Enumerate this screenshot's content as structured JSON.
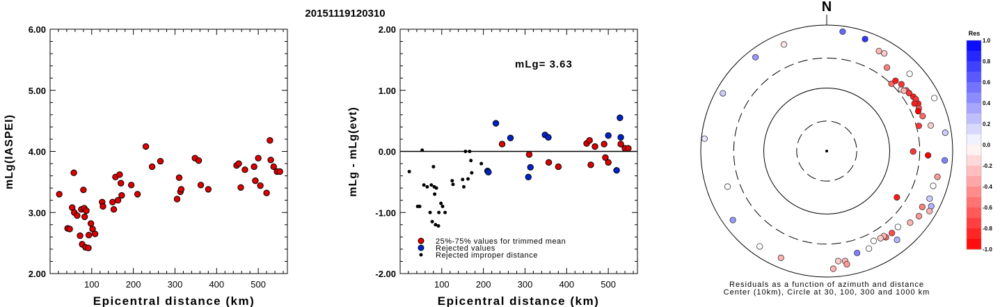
{
  "page_title": "20151119120310",
  "chart_data": [
    {
      "type": "scatter",
      "xlabel": "Epicentral distance (km)",
      "ylabel": "mLg(IASPEI)",
      "xlim": [
        0,
        570
      ],
      "ylim": [
        2.0,
        6.0
      ],
      "x_ticks": [
        "100",
        "200",
        "300",
        "400",
        "500"
      ],
      "y_ticks": [
        "2.00",
        "3.00",
        "4.00",
        "5.00",
        "6.00"
      ],
      "series": [
        {
          "points": [
            [
              22,
              3.3
            ],
            [
              42,
              2.74
            ],
            [
              47,
              2.73
            ],
            [
              53,
              3.08
            ],
            [
              57,
              3.65
            ],
            [
              58,
              3.0
            ],
            [
              65,
              2.95
            ],
            [
              72,
              2.62
            ],
            [
              75,
              3.05
            ],
            [
              77,
              2.48
            ],
            [
              80,
              3.37
            ],
            [
              82,
              3.07
            ],
            [
              83,
              2.93
            ],
            [
              85,
              2.43
            ],
            [
              87,
              3.03
            ],
            [
              92,
              2.42
            ],
            [
              93,
              2.63
            ],
            [
              98,
              2.82
            ],
            [
              102,
              2.73
            ],
            [
              108,
              2.65
            ],
            [
              125,
              3.17
            ],
            [
              127,
              3.1
            ],
            [
              150,
              3.17
            ],
            [
              153,
              3.05
            ],
            [
              157,
              3.58
            ],
            [
              163,
              3.2
            ],
            [
              167,
              3.62
            ],
            [
              170,
              3.48
            ],
            [
              172,
              3.28
            ],
            [
              195,
              3.45
            ],
            [
              210,
              3.3
            ],
            [
              230,
              4.08
            ],
            [
              245,
              3.75
            ],
            [
              265,
              3.84
            ],
            [
              305,
              3.22
            ],
            [
              310,
              3.57
            ],
            [
              313,
              3.34
            ],
            [
              315,
              3.38
            ],
            [
              348,
              3.89
            ],
            [
              357,
              3.85
            ],
            [
              362,
              3.45
            ],
            [
              380,
              3.38
            ],
            [
              448,
              3.77
            ],
            [
              453,
              3.8
            ],
            [
              458,
              3.41
            ],
            [
              468,
              3.7
            ],
            [
              490,
              3.75
            ],
            [
              493,
              3.52
            ],
            [
              500,
              3.89
            ],
            [
              505,
              3.44
            ],
            [
              520,
              3.32
            ],
            [
              528,
              4.18
            ],
            [
              530,
              3.86
            ],
            [
              537,
              3.75
            ],
            [
              545,
              3.67
            ],
            [
              552,
              3.67
            ]
          ]
        }
      ]
    },
    {
      "type": "scatter",
      "xlabel": "Epicentral distance (km)",
      "ylabel": "mLg - mLg(evt)",
      "annotation": "mLg= 3.63",
      "xlim": [
        0,
        570
      ],
      "ylim": [
        -2.0,
        2.0
      ],
      "x_ticks": [
        "100",
        "200",
        "300",
        "400",
        "500"
      ],
      "y_ticks": [
        "-2.00",
        "-1.00",
        "0.00",
        "1.00",
        "2.00"
      ],
      "legend": [
        {
          "label": "25%-75% values for trimmed mean",
          "color": "#dd0000"
        },
        {
          "label": "Rejected values",
          "color": "#0022cc"
        },
        {
          "label": "Rejected improper distance",
          "color": "#000000"
        }
      ],
      "series": [
        {
          "name": "25%-75% values for trimmed mean",
          "color": "#dd0000",
          "points": [
            [
              245,
              0.12
            ],
            [
              310,
              -0.05
            ],
            [
              357,
              -0.18
            ],
            [
              380,
              -0.25
            ],
            [
              448,
              0.13
            ],
            [
              455,
              0.18
            ],
            [
              458,
              -0.22
            ],
            [
              468,
              0.08
            ],
            [
              490,
              0.12
            ],
            [
              493,
              -0.1
            ],
            [
              500,
              -0.18
            ],
            [
              530,
              0.12
            ],
            [
              540,
              0.05
            ],
            [
              548,
              0.05
            ]
          ]
        },
        {
          "name": "Rejected values",
          "color": "#0022cc",
          "points": [
            [
              210,
              -0.32
            ],
            [
              212,
              -0.34
            ],
            [
              230,
              0.46
            ],
            [
              265,
              0.22
            ],
            [
              308,
              -0.42
            ],
            [
              313,
              -0.26
            ],
            [
              348,
              0.27
            ],
            [
              356,
              0.23
            ],
            [
              500,
              0.26
            ],
            [
              520,
              -0.31
            ],
            [
              528,
              0.55
            ],
            [
              530,
              0.23
            ]
          ]
        },
        {
          "name": "Rejected improper distance",
          "color": "#000000",
          "points": [
            [
              22,
              -0.33
            ],
            [
              42,
              -0.9
            ],
            [
              47,
              -0.9
            ],
            [
              53,
              0.02
            ],
            [
              57,
              -0.55
            ],
            [
              65,
              -0.58
            ],
            [
              72,
              -1.0
            ],
            [
              75,
              -0.55
            ],
            [
              77,
              -1.15
            ],
            [
              80,
              -0.25
            ],
            [
              82,
              -0.58
            ],
            [
              83,
              -0.7
            ],
            [
              85,
              -1.2
            ],
            [
              87,
              -0.6
            ],
            [
              92,
              -1.22
            ],
            [
              93,
              -1.0
            ],
            [
              98,
              -0.85
            ],
            [
              102,
              -0.9
            ],
            [
              108,
              -1.0
            ],
            [
              125,
              -0.48
            ],
            [
              127,
              -0.54
            ],
            [
              150,
              -0.46
            ],
            [
              153,
              -0.58
            ],
            [
              157,
              0.0
            ],
            [
              163,
              -0.45
            ],
            [
              167,
              0.0
            ],
            [
              170,
              -0.15
            ],
            [
              172,
              -0.35
            ],
            [
              195,
              -0.2
            ]
          ]
        }
      ]
    },
    {
      "type": "polar_scatter",
      "north_label": "N",
      "caption_line1": "Residuals as a function of azimuth and distance",
      "caption_line2": "Center (10km), Circle at 30, 100, 300 and 1000 km",
      "rings_km": [
        30,
        100,
        300,
        1000
      ],
      "colorbar": {
        "title": "Res",
        "ticks": [
          "1.0",
          "0.8",
          "0.6",
          "0.4",
          "0.2",
          "0.0",
          "-0.2",
          "-0.4",
          "-0.6",
          "-0.8",
          "-1.0"
        ],
        "range": [
          -1.0,
          1.0
        ]
      },
      "points": [
        {
          "az": 7.6,
          "dist_km": 818,
          "res": 0.6
        },
        {
          "az": 18.9,
          "dist_km": 758,
          "res": 0.8
        },
        {
          "az": 27.6,
          "dist_km": 618,
          "res": -0.3
        },
        {
          "az": 30.5,
          "dist_km": 630,
          "res": -0.2
        },
        {
          "az": 47.0,
          "dist_km": 630,
          "res": 0.0
        },
        {
          "az": 63.8,
          "dist_km": 802,
          "res": 0.0
        },
        {
          "az": 81.2,
          "dist_km": 802,
          "res": 0.2
        },
        {
          "az": 76.2,
          "dist_km": 502,
          "res": -0.2
        },
        {
          "az": 92.4,
          "dist_km": 408,
          "res": -1.0
        },
        {
          "az": 94.5,
          "dist_km": 758,
          "res": 0.5
        },
        {
          "az": 103.1,
          "dist_km": 638,
          "res": -0.4
        },
        {
          "az": 108.1,
          "dist_km": 600,
          "res": 0.0
        },
        {
          "az": 114.8,
          "dist_km": 630,
          "res": 0.2
        },
        {
          "az": 117.8,
          "dist_km": 752,
          "res": 0.3
        },
        {
          "az": 120.3,
          "dist_km": 776,
          "res": -0.3
        },
        {
          "az": 120.3,
          "dist_km": 572,
          "res": -0.5
        },
        {
          "az": 125.2,
          "dist_km": 620,
          "res": -0.4
        },
        {
          "az": 130.6,
          "dist_km": 556,
          "res": -0.3
        },
        {
          "az": 141.6,
          "dist_km": 628,
          "res": 0.3
        },
        {
          "az": 136.8,
          "dist_km": 448,
          "res": 0.0
        },
        {
          "az": 141.5,
          "dist_km": 460,
          "res": -0.7
        },
        {
          "az": 145.5,
          "dist_km": 458,
          "res": -0.6
        },
        {
          "az": 146.1,
          "dist_km": 422,
          "res": -0.3
        },
        {
          "az": 148.3,
          "dist_km": 423,
          "res": -0.2
        },
        {
          "az": 152.4,
          "dist_km": 406,
          "res": 0.0
        },
        {
          "az": 156.6,
          "dist_km": 486,
          "res": 0.0
        },
        {
          "az": 163.4,
          "dist_km": 488,
          "res": 0.5
        },
        {
          "az": 170.5,
          "dist_km": 588,
          "res": -0.3
        },
        {
          "az": 174.0,
          "dist_km": 570,
          "res": -0.2
        },
        {
          "az": 169.9,
          "dist_km": 668,
          "res": -0.4
        },
        {
          "az": 176.8,
          "dist_km": 742,
          "res": -0.3
        },
        {
          "az": 123.4,
          "dist_km": 216,
          "res": -0.9
        },
        {
          "az": 90.3,
          "dist_km": 236,
          "res": -0.8
        },
        {
          "az": 62.6,
          "dist_km": 432,
          "res": -0.9
        },
        {
          "az": 50.4,
          "dist_km": 344,
          "res": -0.1
        },
        {
          "az": 43.9,
          "dist_km": 304,
          "res": -0.6
        },
        {
          "az": 44.4,
          "dist_km": 364,
          "res": -0.9
        },
        {
          "az": 48.2,
          "dist_km": 390,
          "res": -0.8
        },
        {
          "az": 52.7,
          "dist_km": 388,
          "res": -0.7
        },
        {
          "az": 54.9,
          "dist_km": 398,
          "res": -0.8
        },
        {
          "az": 52.0,
          "dist_km": 360,
          "res": -0.3
        },
        {
          "az": 57.9,
          "dist_km": 420,
          "res": -0.9
        },
        {
          "az": 59.8,
          "dist_km": 434,
          "res": -0.8
        },
        {
          "az": 61.6,
          "dist_km": 384,
          "res": -0.9
        },
        {
          "az": 65.1,
          "dist_km": 410,
          "res": -0.7
        },
        {
          "az": 66.5,
          "dist_km": 384,
          "res": -1.0
        },
        {
          "az": 74.7,
          "dist_km": 328,
          "res": -0.8
        },
        {
          "az": 70.0,
          "dist_km": 418,
          "res": -0.6
        },
        {
          "az": 250.3,
          "dist_km": 470,
          "res": 0.0
        },
        {
          "az": 233.7,
          "dist_km": 706,
          "res": 0.4
        },
        {
          "az": 215.1,
          "dist_km": 708,
          "res": 0.0
        },
        {
          "az": 275.8,
          "dist_km": 892,
          "res": 0.1
        },
        {
          "az": 299.1,
          "dist_km": 770,
          "res": 0.2
        },
        {
          "az": 322.8,
          "dist_km": 742,
          "res": 0.4
        },
        {
          "az": 338.1,
          "dist_km": 666,
          "res": -0.1
        },
        {
          "az": 35.8,
          "dist_km": 432,
          "res": -0.5
        },
        {
          "az": 203.2,
          "dist_km": 698,
          "res": -0.3
        }
      ]
    }
  ]
}
